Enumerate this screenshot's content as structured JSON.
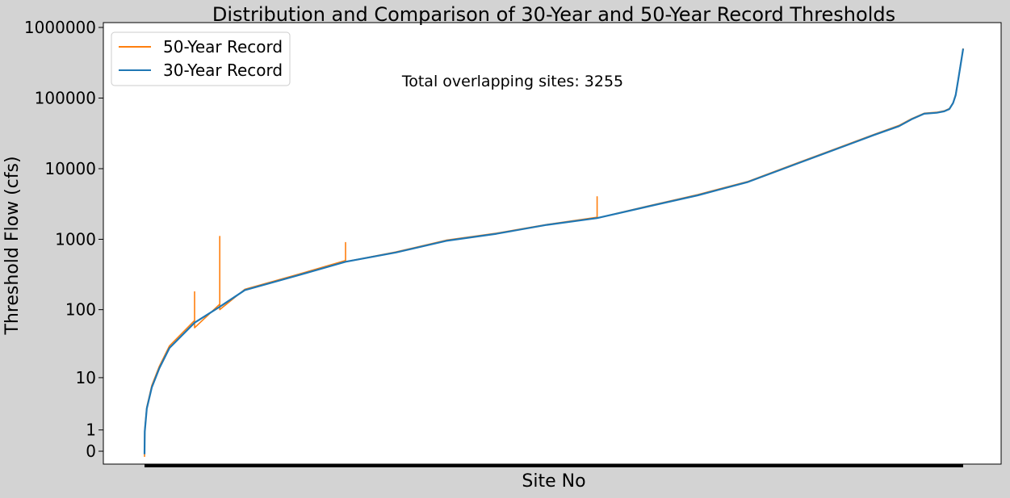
{
  "chart_data": {
    "type": "line",
    "title": "Distribution and Comparison of 30-Year and 50-Year Record Thresholds",
    "xlabel": "Site No",
    "ylabel": "Threshold Flow (cfs)",
    "yscale": "symlog",
    "ylim": [
      -0.3,
      1000000
    ],
    "yticks": [
      0,
      1,
      10,
      100,
      1000,
      10000,
      100000,
      1000000
    ],
    "ytick_labels": [
      "0",
      "1",
      "10",
      "100",
      "1000",
      "10000",
      "100000",
      "1000000"
    ],
    "x_range": [
      1,
      3255
    ],
    "annotation": "Total overlapping sites: 3255",
    "legend_position": "upper-left",
    "grid": false,
    "colors": {
      "50-Year Record": "#ff7f0e",
      "30-Year Record": "#1f77b4",
      "figure_background": "#d3d3d3",
      "axes_background": "#ffffff"
    },
    "series": [
      {
        "name": "30-Year Record",
        "x": [
          1,
          2,
          10,
          30,
          60,
          100,
          200,
          300,
          400,
          600,
          800,
          1000,
          1200,
          1400,
          1600,
          1800,
          2000,
          2200,
          2400,
          2600,
          2800,
          2900,
          3000,
          3050,
          3100,
          3150,
          3180,
          3200,
          3215,
          3225,
          3235,
          3245,
          3255
        ],
        "y": [
          -0.1,
          0.9,
          3,
          7,
          14,
          28,
          65,
          110,
          190,
          300,
          480,
          650,
          950,
          1200,
          1600,
          2000,
          2900,
          4200,
          6500,
          12000,
          22000,
          30000,
          40000,
          50000,
          60000,
          62000,
          65000,
          70000,
          85000,
          110000,
          180000,
          300000,
          500000
        ]
      },
      {
        "name": "50-Year Record",
        "x": [
          1,
          2,
          10,
          30,
          60,
          100,
          200,
          200,
          200,
          300,
          300,
          300,
          400,
          600,
          800,
          800,
          800,
          1000,
          1200,
          1400,
          1600,
          1800,
          1800,
          1800,
          2000,
          2200,
          2400,
          2600,
          2800,
          2900,
          3000,
          3050,
          3100,
          3150,
          3180,
          3200,
          3215,
          3225,
          3235,
          3245,
          3255
        ],
        "y": [
          -0.2,
          1,
          3.2,
          7.5,
          15,
          30,
          70,
          180,
          55,
          120,
          1100,
          100,
          195,
          310,
          500,
          900,
          480,
          660,
          970,
          1220,
          1620,
          2050,
          4000,
          2000,
          2950,
          4300,
          6600,
          12200,
          22500,
          30500,
          41000,
          51000,
          61000,
          63000,
          66000,
          71000,
          86000,
          112000,
          182000,
          305000,
          505000
        ]
      }
    ]
  }
}
